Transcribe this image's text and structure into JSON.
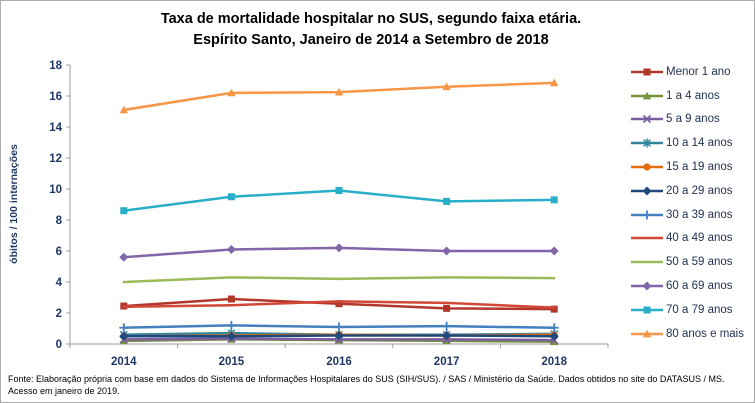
{
  "title": {
    "line1": "Taxa de mortalidade hospitalar no SUS, segundo faixa etária.",
    "line2": "Espírito Santo, Janeiro de 2014 a Setembro de 2018"
  },
  "footer": {
    "source": "Fonte: Elaboração própria com base em dados do Sistema de Informações Hospitalares do SUS (SIH/SUS). / SAS / Ministério da Saúde. Dados obtidos no site do DATASUS / MS. Acesso em janeiro de 2019."
  },
  "axis": {
    "ylabel": "óbitos / 100 internações",
    "yticks": [
      0,
      2,
      4,
      6,
      8,
      10,
      12,
      14,
      16,
      18
    ],
    "axis_color": "#9c9c9c",
    "label_color": "#1f3864"
  },
  "chart_data": {
    "type": "line",
    "title": "Taxa de mortalidade hospitalar no SUS, segundo faixa etária. Espírito Santo, Janeiro de 2014 a Setembro de 2018",
    "x": [
      "2014",
      "2015",
      "2016",
      "2017",
      "2018"
    ],
    "xlabel": "",
    "ylabel": "óbitos / 100 internações",
    "ylim": [
      0,
      18
    ],
    "ytick_step": 2,
    "grid": false,
    "legend_position": "right",
    "series": [
      {
        "name": "Menor 1 ano",
        "color": "#b1372b",
        "marker": "square",
        "values": [
          2.45,
          2.9,
          2.6,
          2.3,
          2.25
        ]
      },
      {
        "name": "1 a 4 anos",
        "color": "#77933c",
        "marker": "triangle",
        "values": [
          0.2,
          0.3,
          0.25,
          0.2,
          0.15
        ]
      },
      {
        "name": "5 a 9 anos",
        "color": "#7a5da2",
        "marker": "x",
        "values": [
          0.3,
          0.35,
          0.3,
          0.3,
          0.25
        ]
      },
      {
        "name": "10 a 14 anos",
        "color": "#31859c",
        "marker": "asterisk",
        "values": [
          0.6,
          0.7,
          0.6,
          0.6,
          0.65
        ]
      },
      {
        "name": "15 a 19 anos",
        "color": "#e46c0a",
        "marker": "circle",
        "values": [
          0.5,
          0.55,
          0.6,
          0.55,
          0.6
        ]
      },
      {
        "name": "20 a 29 anos",
        "color": "#1f497d",
        "marker": "diamond",
        "values": [
          0.5,
          0.5,
          0.55,
          0.55,
          0.5
        ]
      },
      {
        "name": "30 a 39 anos",
        "color": "#4380c0",
        "marker": "plus",
        "values": [
          1.05,
          1.2,
          1.1,
          1.15,
          1.05
        ]
      },
      {
        "name": "40 a 49 anos",
        "color": "#d24838",
        "marker": "none",
        "values": [
          2.4,
          2.5,
          2.75,
          2.65,
          2.35
        ]
      },
      {
        "name": "50 a 59 anos",
        "color": "#9bbb59",
        "marker": "none",
        "values": [
          4.0,
          4.3,
          4.2,
          4.3,
          4.25
        ]
      },
      {
        "name": "60 a 69 anos",
        "color": "#8365a9",
        "marker": "diamond",
        "values": [
          5.6,
          6.1,
          6.2,
          6.0,
          6.0
        ]
      },
      {
        "name": "70 a 79 anos",
        "color": "#28aec8",
        "marker": "square",
        "values": [
          8.6,
          9.5,
          9.9,
          9.2,
          9.3
        ]
      },
      {
        "name": "80 anos e mais",
        "color": "#f79646",
        "marker": "triangle",
        "values": [
          15.1,
          16.2,
          16.25,
          16.6,
          16.85
        ]
      }
    ]
  }
}
